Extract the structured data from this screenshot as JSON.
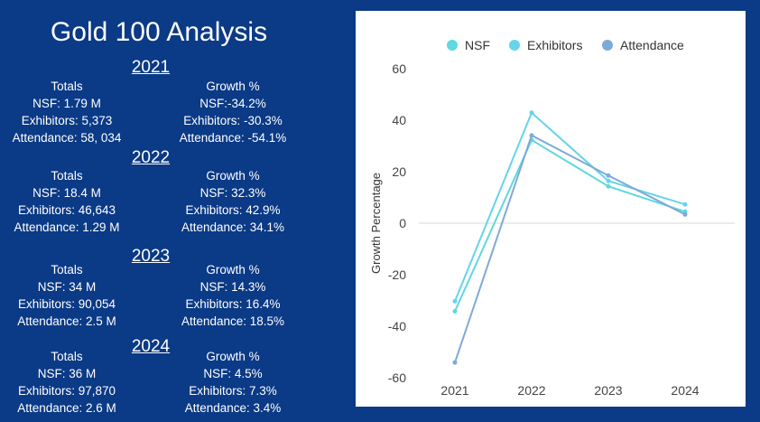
{
  "title": "Gold 100 Analysis",
  "sections": [
    {
      "year": "2021",
      "totals_header": "Totals",
      "totals": [
        "NSF: 1.79 M",
        "Exhibitors: 5,373",
        "Attendance: 58, 034"
      ],
      "growth_header": "Growth %",
      "growth": [
        "NSF:-34.2%",
        "Exhibitors: -30.3%",
        "Attendance: -54.1%"
      ]
    },
    {
      "year": "2022",
      "totals_header": "Totals",
      "totals": [
        "NSF: 18.4 M",
        "Exhibitors: 46,643",
        "Attendance: 1.29 M"
      ],
      "growth_header": "Growth %",
      "growth": [
        "NSF: 32.3%",
        "Exhibitors: 42.9%",
        "Attendance: 34.1%"
      ]
    },
    {
      "year": "2023",
      "totals_header": "Totals",
      "totals": [
        "NSF: 34 M",
        "Exhibitors: 90,054",
        "Attendance: 2.5 M"
      ],
      "growth_header": "Growth %",
      "growth": [
        "NSF: 14.3%",
        "Exhibitors: 16.4%",
        "Attendance: 18.5%"
      ]
    },
    {
      "year": "2024",
      "totals_header": "Totals",
      "totals": [
        "NSF: 36 M",
        "Exhibitors: 97,870",
        "Attendance: 2.6 M"
      ],
      "growth_header": "Growth %",
      "growth": [
        "NSF: 4.5%",
        "Exhibitors: 7.3%",
        "Attendance: 3.4%"
      ]
    }
  ],
  "chart_data": {
    "type": "line",
    "title": "",
    "xlabel": "",
    "ylabel": "Growth Percentage",
    "categories": [
      "2021",
      "2022",
      "2023",
      "2024"
    ],
    "ylim": [
      -60,
      60
    ],
    "yticks": [
      60,
      40,
      20,
      0,
      -20,
      -40,
      -60
    ],
    "grid": false,
    "legend": "top",
    "series": [
      {
        "name": "NSF",
        "color": "#5fd8df",
        "values": [
          -34.2,
          32.3,
          14.3,
          4.5
        ]
      },
      {
        "name": "Exhibitors",
        "color": "#66d4ea",
        "values": [
          -30.3,
          42.9,
          16.4,
          7.3
        ]
      },
      {
        "name": "Attendance",
        "color": "#7fa9d8",
        "values": [
          -54.1,
          34.1,
          18.5,
          3.4
        ]
      }
    ]
  }
}
